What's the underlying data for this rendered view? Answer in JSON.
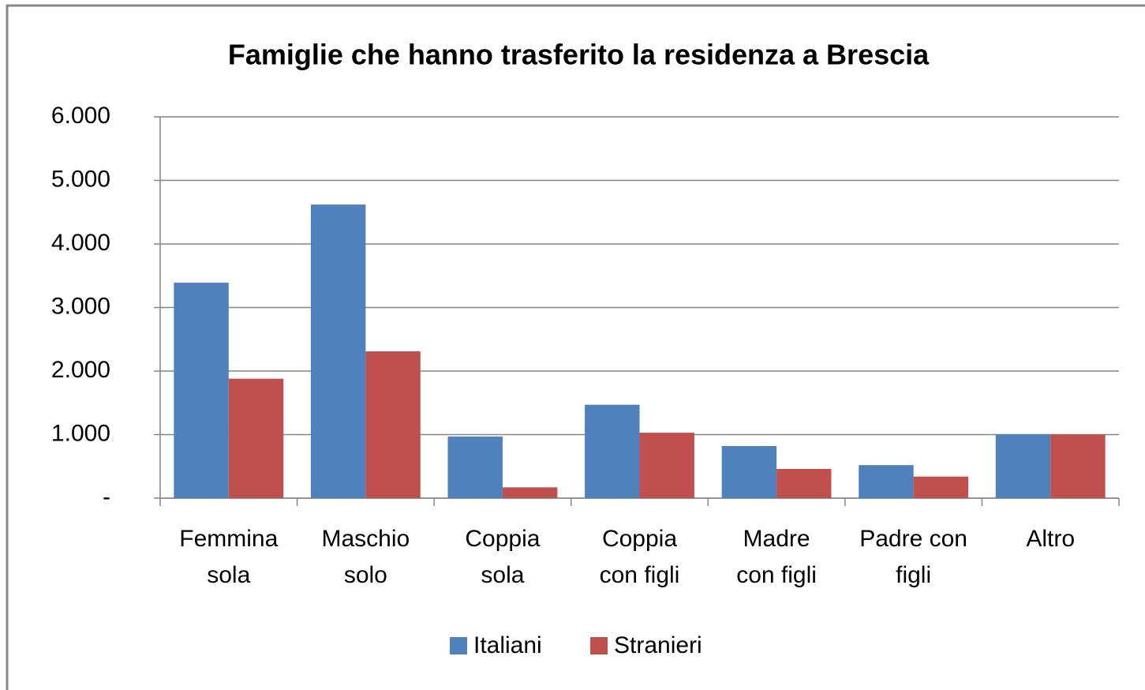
{
  "chart_data": {
    "type": "bar",
    "title": "Famiglie che hanno trasferito la residenza a Brescia",
    "categories": [
      "Femmina\nsola",
      "Maschio\nsolo",
      "Coppia\nsola",
      "Coppia\ncon figli",
      "Madre\ncon figli",
      "Padre con\nfigli",
      "Altro"
    ],
    "series": [
      {
        "name": "Italiani",
        "color": "#4f81bd",
        "values": [
          3390,
          4620,
          970,
          1470,
          820,
          520,
          1000
        ]
      },
      {
        "name": "Stranieri",
        "color": "#c0504d",
        "values": [
          1880,
          2310,
          170,
          1030,
          460,
          340,
          1000
        ]
      }
    ],
    "ylim": [
      0,
      6000
    ],
    "yticks": [
      {
        "value": 0,
        "label": "-"
      },
      {
        "value": 1000,
        "label": "1.000"
      },
      {
        "value": 2000,
        "label": "2.000"
      },
      {
        "value": 3000,
        "label": "3.000"
      },
      {
        "value": 4000,
        "label": "4.000"
      },
      {
        "value": 5000,
        "label": "5.000"
      },
      {
        "value": 6000,
        "label": "6.000"
      }
    ],
    "grid": true
  }
}
